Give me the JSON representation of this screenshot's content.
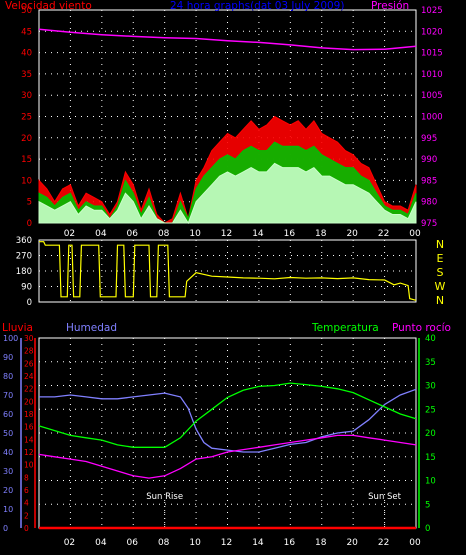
{
  "colors": {
    "background": "#000000",
    "axis": "#ffffff",
    "grid": "#ffffff",
    "wind_speed": "#ff0000",
    "wind_gust": "#00c000",
    "wind_avg": "#c8ffc8",
    "pressure": "#ff00ff",
    "direction": "#ffff00",
    "rain": "#ff0000",
    "humidity": "#8080ff",
    "temperature": "#00ff00",
    "dewpoint": "#ff00ff",
    "title": "#0000ff"
  },
  "chart_data": [
    {
      "type": "line",
      "title": "24 hora graphs(dat 03 July 2009)",
      "ylabel_left": "Velocidad viento",
      "ylabel_right": "Presión",
      "x_ticks": [
        "02",
        "04",
        "06",
        "08",
        "10",
        "12",
        "14",
        "16",
        "18",
        "20",
        "22",
        "00"
      ],
      "xlim": [
        0,
        24
      ],
      "ylim_left": [
        0,
        50
      ],
      "yticks_left": [
        0,
        5,
        10,
        15,
        20,
        25,
        30,
        35,
        40,
        45,
        50
      ],
      "ylim_right": [
        975,
        1025
      ],
      "yticks_right": [
        975,
        980,
        985,
        990,
        995,
        1000,
        1005,
        1010,
        1015,
        1020,
        1025
      ],
      "grid": true,
      "series": [
        {
          "name": "Presión",
          "axis": "right",
          "x": [
            0,
            2,
            4,
            6,
            8,
            10,
            12,
            14,
            16,
            18,
            20,
            22,
            24
          ],
          "values": [
            1020.5,
            1019.8,
            1019.2,
            1018.8,
            1018.5,
            1018.3,
            1017.8,
            1017.4,
            1016.8,
            1016.1,
            1015.7,
            1015.8,
            1016.5
          ]
        },
        {
          "axis": "left",
          "x": [
            0,
            0.5,
            1,
            1.5,
            2,
            2.5,
            3,
            3.5,
            4,
            4.5,
            5,
            5.5,
            6,
            6.5,
            7,
            7.5,
            8,
            8.5,
            9,
            9.5,
            10,
            10.5,
            11,
            11.5,
            12,
            12.5,
            13,
            13.5,
            14,
            14.5,
            15,
            15.5,
            16,
            16.5,
            17,
            17.5,
            18,
            18.5,
            19,
            19.5,
            20,
            20.5,
            21,
            21.5,
            22,
            22.5,
            23,
            23.5,
            24
          ],
          "values": [
            10,
            8,
            5,
            8,
            9,
            4,
            7,
            6,
            5,
            2,
            5,
            12,
            9,
            3,
            8,
            2,
            0,
            1,
            7,
            1,
            10,
            13,
            17,
            19,
            21,
            20,
            22,
            24,
            22,
            23,
            25,
            24,
            23,
            24,
            22,
            24,
            21,
            20,
            19,
            17,
            16,
            14,
            13,
            9,
            5,
            4,
            4,
            3,
            9
          ]
        },
        {
          "axis": "left",
          "x": [
            0,
            0.5,
            1,
            1.5,
            2,
            2.5,
            3,
            3.5,
            4,
            4.5,
            5,
            5.5,
            6,
            6.5,
            7,
            7.5,
            8,
            8.5,
            9,
            9.5,
            10,
            10.5,
            11,
            11.5,
            12,
            12.5,
            13,
            13.5,
            14,
            14.5,
            15,
            15.5,
            16,
            16.5,
            17,
            17.5,
            18,
            18.5,
            19,
            19.5,
            20,
            20.5,
            21,
            21.5,
            22,
            22.5,
            23,
            23.5,
            24
          ],
          "values": [
            7,
            6,
            4,
            6,
            7,
            3,
            5,
            4,
            4,
            1,
            4,
            10,
            7,
            2,
            6,
            1,
            0,
            0,
            5,
            1,
            8,
            11,
            13,
            15,
            16,
            15,
            17,
            18,
            17,
            17,
            19,
            18,
            18,
            18,
            17,
            18,
            16,
            15,
            14,
            13,
            13,
            11,
            10,
            7,
            4,
            3,
            3,
            2,
            7
          ]
        },
        {
          "axis": "left",
          "x": [
            0,
            0.5,
            1,
            1.5,
            2,
            2.5,
            3,
            3.5,
            4,
            4.5,
            5,
            5.5,
            6,
            6.5,
            7,
            7.5,
            8,
            8.5,
            9,
            9.5,
            10,
            10.5,
            11,
            11.5,
            12,
            12.5,
            13,
            13.5,
            14,
            14.5,
            15,
            15.5,
            16,
            16.5,
            17,
            17.5,
            18,
            18.5,
            19,
            19.5,
            20,
            20.5,
            21,
            21.5,
            22,
            22.5,
            23,
            23.5,
            24
          ],
          "values": [
            5,
            4,
            3,
            4,
            5,
            2,
            4,
            3,
            3,
            1,
            3,
            7,
            5,
            1,
            4,
            1,
            0,
            0,
            3,
            0,
            5,
            7,
            9,
            11,
            12,
            11,
            12,
            13,
            12,
            12,
            14,
            13,
            13,
            13,
            12,
            13,
            11,
            11,
            10,
            9,
            9,
            8,
            7,
            5,
            3,
            2,
            2,
            1,
            5
          ]
        }
      ]
    },
    {
      "type": "line",
      "ylim": [
        0,
        360
      ],
      "yticks": [
        0,
        90,
        180,
        270,
        360
      ],
      "right_labels": [
        "N",
        "W",
        "S",
        "E",
        "N"
      ],
      "xlim": [
        0,
        24
      ],
      "grid": true,
      "series": [
        {
          "x": [
            0,
            0.3,
            0.4,
            1.3,
            1.4,
            1.8,
            1.9,
            2.1,
            2.2,
            2.6,
            2.7,
            3.8,
            3.9,
            4.9,
            5.0,
            5.4,
            5.5,
            6.0,
            6.1,
            7.0,
            7.1,
            7.5,
            7.6,
            8.2,
            8.3,
            9.3,
            9.4,
            10,
            11,
            12,
            13,
            14,
            15,
            16,
            17,
            18,
            19,
            20,
            21,
            22,
            22.6,
            23,
            23.5,
            23.6,
            24
          ],
          "values": [
            350,
            350,
            330,
            330,
            30,
            30,
            330,
            330,
            30,
            30,
            330,
            330,
            30,
            30,
            330,
            330,
            30,
            30,
            330,
            330,
            30,
            30,
            330,
            330,
            30,
            30,
            120,
            170,
            150,
            145,
            140,
            138,
            135,
            142,
            138,
            140,
            136,
            140,
            130,
            128,
            100,
            110,
            95,
            20,
            10
          ]
        }
      ]
    },
    {
      "type": "line",
      "xlim": [
        0,
        24
      ],
      "x_ticks": [
        "02",
        "04",
        "06",
        "08",
        "10",
        "12",
        "14",
        "16",
        "18",
        "20",
        "22",
        "00"
      ],
      "labels": {
        "rain": "Lluvia",
        "humidity": "Humedad",
        "temperature": "Temperatura",
        "dewpoint": "Punto rocío"
      },
      "axis_humidity": {
        "ylim": [
          0,
          100
        ],
        "yticks": [
          0,
          10,
          20,
          30,
          40,
          50,
          60,
          70,
          80,
          90,
          100
        ]
      },
      "axis_rain": {
        "ylim": [
          0,
          30
        ],
        "yticks": [
          0,
          2,
          4,
          6,
          8,
          10,
          12,
          14,
          16,
          18,
          20,
          22,
          24,
          26,
          28,
          30
        ]
      },
      "axis_temp": {
        "ylim": [
          0,
          40
        ],
        "yticks": [
          0,
          5,
          10,
          15,
          20,
          25,
          30,
          35,
          40
        ]
      },
      "annotations": [
        {
          "text": "Sun Rise",
          "x": 8
        },
        {
          "text": "Sun Set",
          "x": 22
        }
      ],
      "grid": true,
      "series": [
        {
          "name": "Lluvia",
          "axis": "rain",
          "x": [
            0,
            24
          ],
          "values": [
            0,
            0
          ]
        },
        {
          "name": "Humedad",
          "axis": "humidity",
          "x": [
            0,
            1,
            2,
            3,
            4,
            5,
            6,
            7,
            8,
            9,
            9.5,
            10,
            10.5,
            11,
            12,
            13,
            14,
            15,
            16,
            17,
            18,
            19,
            20,
            21,
            22,
            23,
            24
          ],
          "values": [
            69,
            69,
            70,
            69,
            68,
            68,
            69,
            70,
            71,
            69,
            63,
            52,
            45,
            42,
            41,
            40,
            40,
            42,
            44,
            45,
            48,
            50,
            51,
            57,
            65,
            70,
            73
          ]
        },
        {
          "name": "Temperatura",
          "axis": "temp",
          "x": [
            0,
            1,
            2,
            3,
            4,
            5,
            6,
            7,
            8,
            9,
            10,
            11,
            12,
            13,
            14,
            15,
            16,
            17,
            18,
            19,
            20,
            21,
            22,
            23,
            24
          ],
          "values": [
            21.5,
            20.5,
            19.5,
            19,
            18.5,
            17.5,
            17,
            17,
            17,
            19,
            22.5,
            25,
            27.5,
            29,
            29.8,
            30,
            30.5,
            30.2,
            29.8,
            29.3,
            28.5,
            27,
            25.5,
            24,
            23
          ]
        },
        {
          "name": "Punto rocío",
          "axis": "temp",
          "x": [
            0,
            1,
            2,
            3,
            4,
            5,
            6,
            7,
            8,
            9,
            10,
            11,
            12,
            13,
            14,
            15,
            16,
            17,
            18,
            19,
            20,
            21,
            22,
            23,
            24
          ],
          "values": [
            15.5,
            15,
            14.5,
            14,
            13,
            12,
            11,
            10.5,
            11,
            12.5,
            14.5,
            15,
            16,
            16.5,
            17,
            17.5,
            18,
            18.5,
            19,
            19.5,
            19.5,
            19,
            18.5,
            18,
            17.5
          ]
        }
      ]
    }
  ]
}
